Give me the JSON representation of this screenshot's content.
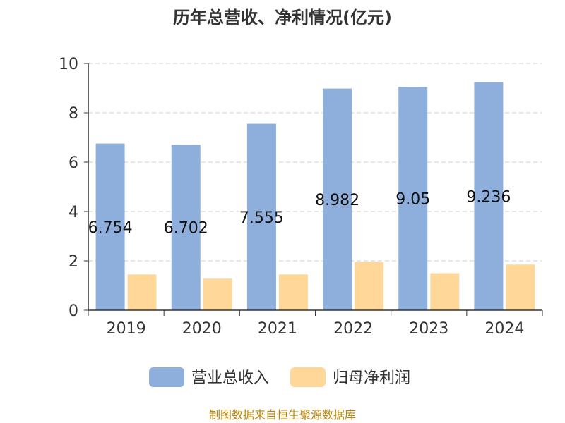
{
  "chart_data": {
    "type": "bar",
    "title": "历年总营收、净利情况(亿元)",
    "categories": [
      "2019",
      "2020",
      "2021",
      "2022",
      "2023",
      "2024"
    ],
    "series": [
      {
        "name": "营业总收入",
        "values": [
          6.754,
          6.702,
          7.555,
          8.982,
          9.05,
          9.236
        ],
        "color": "#8eaedb",
        "labels": [
          "6.754",
          "6.702",
          "7.555",
          "8.982",
          "9.05",
          "9.236"
        ]
      },
      {
        "name": "归母净利润",
        "values": [
          1.45,
          1.28,
          1.45,
          1.95,
          1.5,
          1.85
        ],
        "color": "#ffd899"
      }
    ],
    "ylim": [
      0,
      10
    ],
    "yticks": [
      "0",
      "2",
      "4",
      "6",
      "8",
      "10"
    ],
    "grid": "horizontal-dashed",
    "legend_position": "bottom-center"
  },
  "footer": {
    "source": "制图数据来自恒生聚源数据库"
  },
  "colors": {
    "grid": "#cccccc",
    "axis": "#333333",
    "footer": "#b8860b",
    "title": "#333333"
  }
}
